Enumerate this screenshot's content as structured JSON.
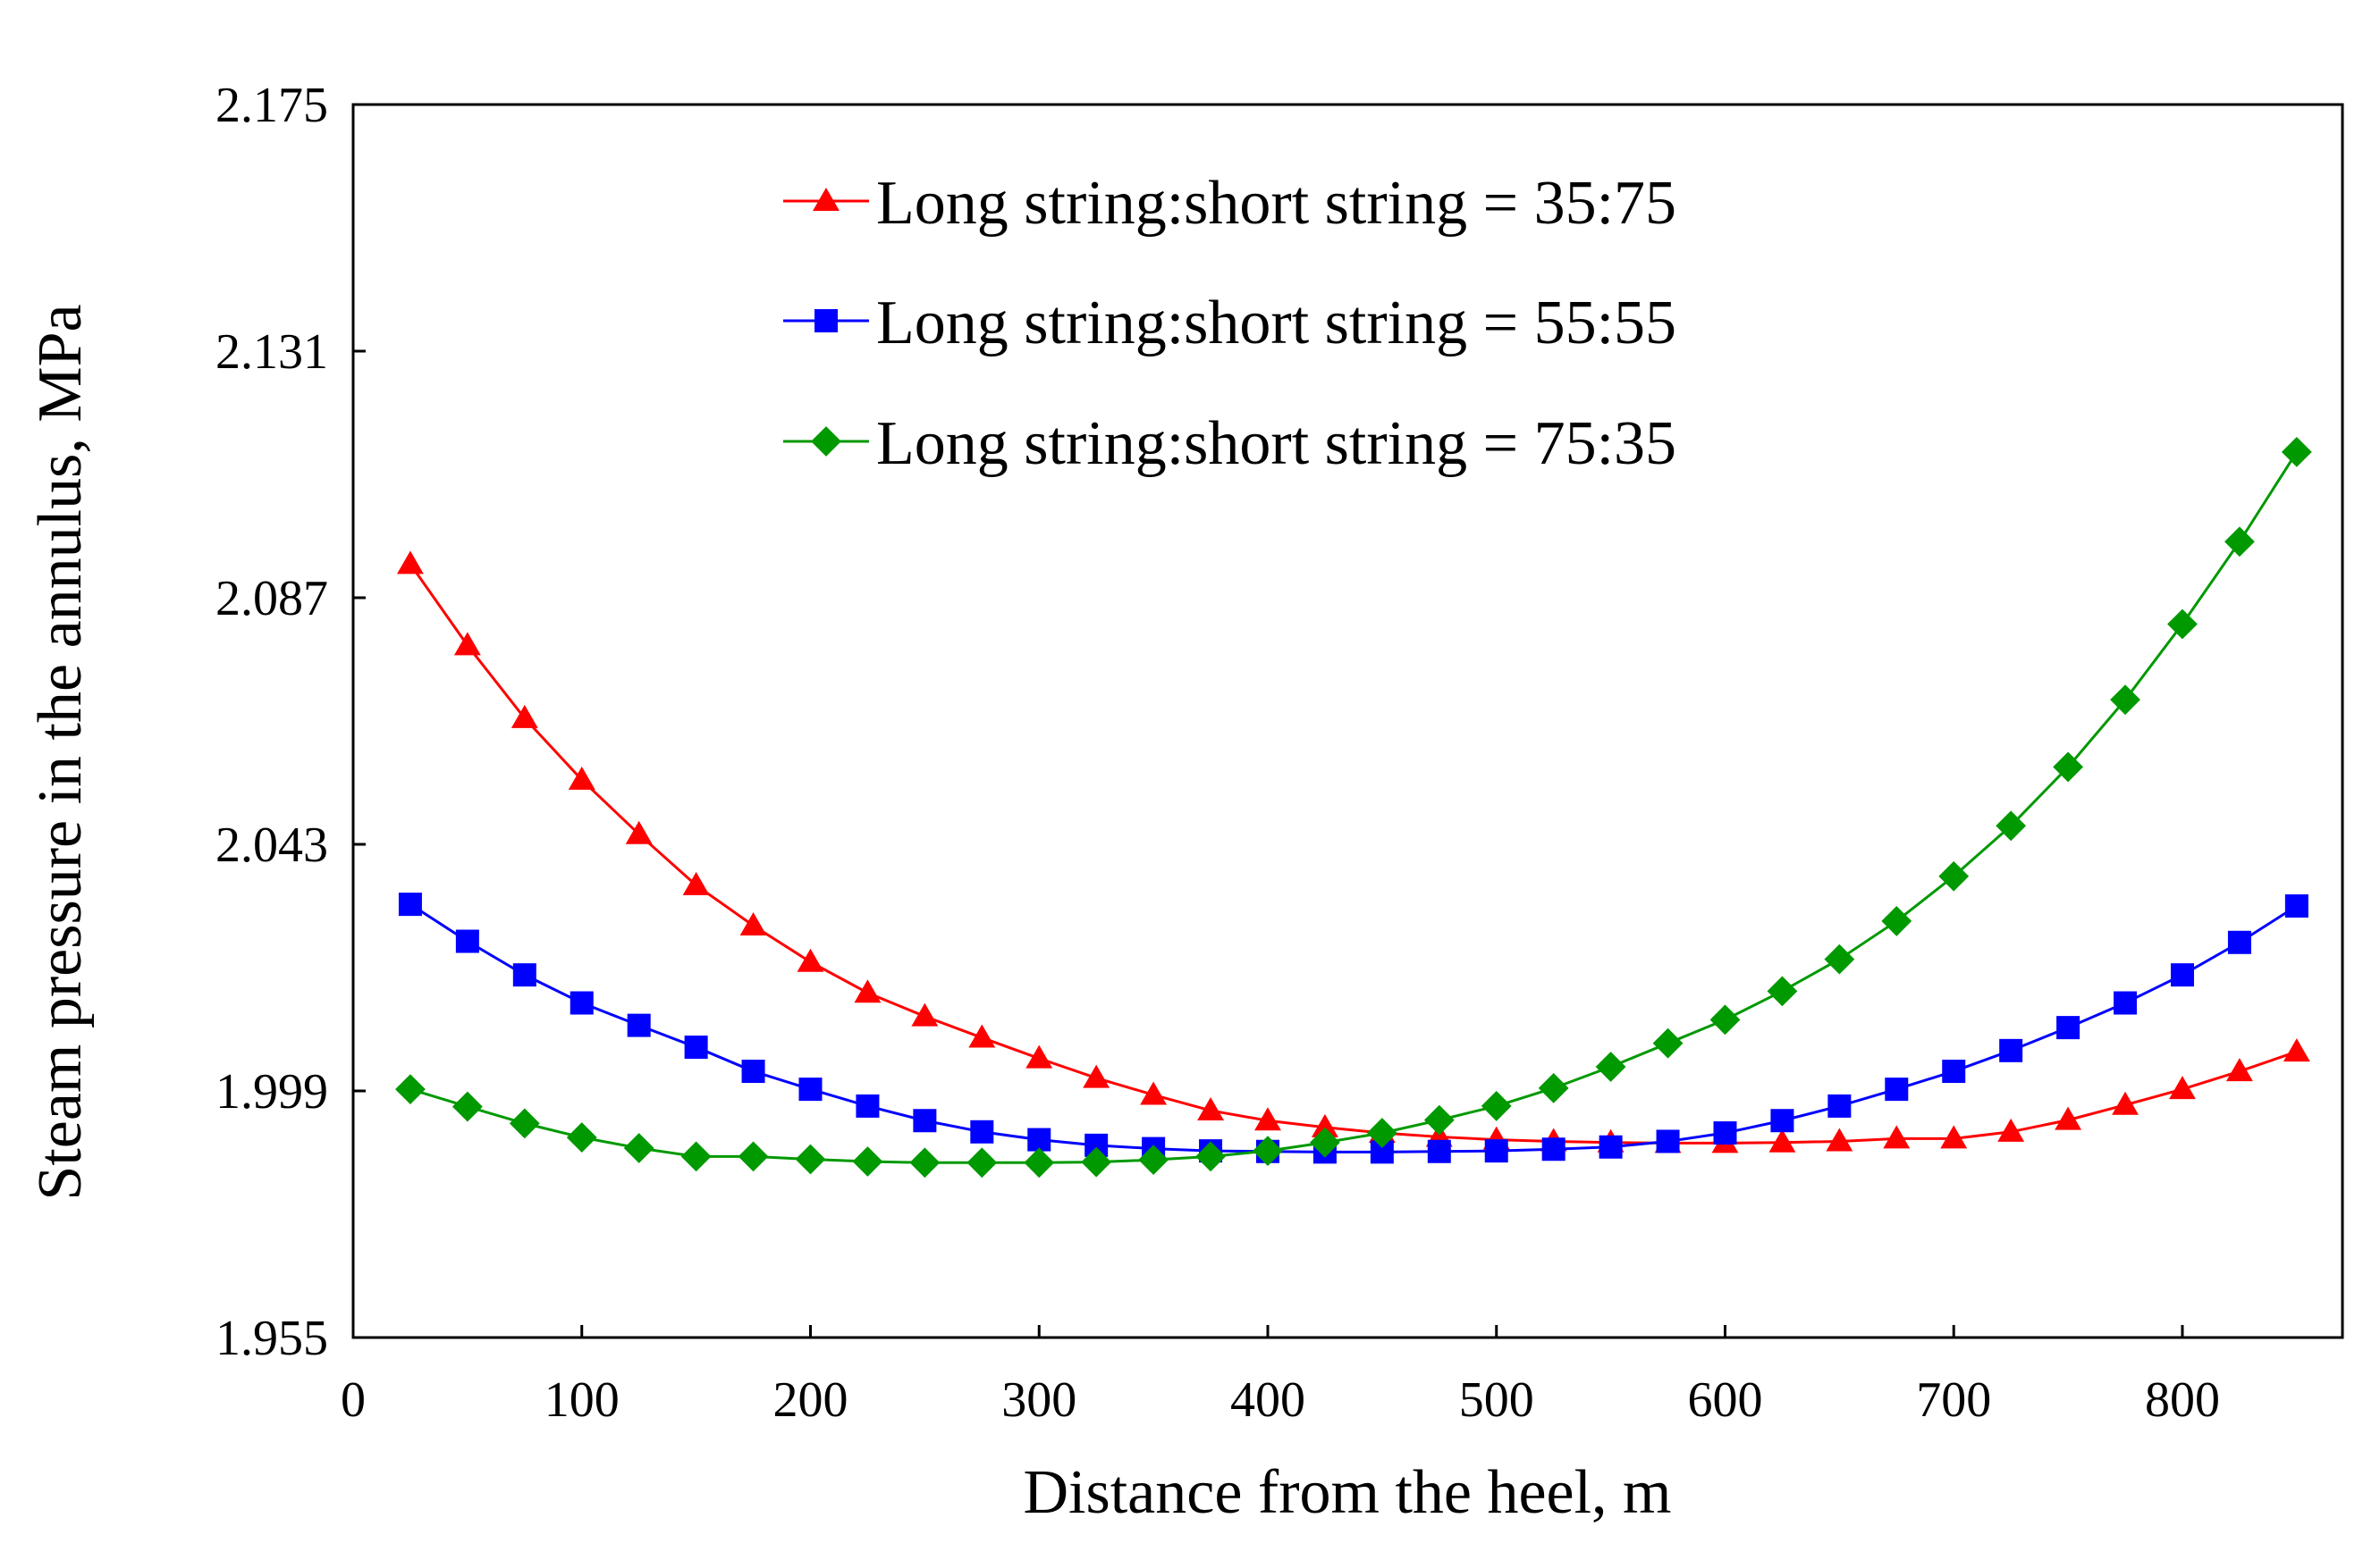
{
  "chart_data": {
    "type": "line",
    "title": "",
    "xlabel": "Distance from the heel, m",
    "ylabel": "Steam pressure in the annulus, MPa",
    "xlim": [
      0,
      870
    ],
    "ylim": [
      1.955,
      2.175
    ],
    "xticks": [
      0,
      100,
      200,
      300,
      400,
      500,
      600,
      700,
      800
    ],
    "yticks": [
      1.955,
      1.999,
      2.043,
      2.087,
      2.131,
      2.175
    ],
    "ytick_labels": [
      "1.955",
      "1.999",
      "2.043",
      "2.087",
      "2.131",
      "2.175"
    ],
    "grid": false,
    "legend_position": "top-center",
    "x": [
      25,
      50,
      75,
      100,
      125,
      150,
      175,
      200,
      225,
      250,
      275,
      300,
      325,
      350,
      375,
      400,
      425,
      450,
      475,
      500,
      525,
      550,
      575,
      600,
      625,
      650,
      675,
      700,
      725,
      750,
      775,
      800,
      825,
      850
    ],
    "series": [
      {
        "name": "Long string:short string = 35:75",
        "color": "#ff0000",
        "marker": "triangle",
        "values": [
          2.093,
          2.0785,
          2.0655,
          2.0545,
          2.0448,
          2.0357,
          2.0285,
          2.022,
          2.0165,
          2.0123,
          2.0085,
          2.0048,
          2.0013,
          1.9983,
          1.9955,
          1.9937,
          1.9925,
          1.9915,
          1.9908,
          1.9903,
          1.99,
          1.9898,
          1.9897,
          1.9897,
          1.9898,
          1.99,
          1.9905,
          1.9905,
          1.9917,
          1.9938,
          1.9965,
          1.9993,
          2.0025,
          2.006
        ]
      },
      {
        "name": "Long string:short string = 55:55",
        "color": "#0000ff",
        "marker": "square",
        "values": [
          2.0323,
          2.0257,
          2.0197,
          2.0147,
          2.0107,
          2.0068,
          2.0025,
          1.9993,
          1.9963,
          1.9937,
          1.9917,
          1.9903,
          1.9893,
          1.9887,
          1.9883,
          1.9882,
          1.9881,
          1.9881,
          1.9882,
          1.9883,
          1.9886,
          1.989,
          1.99,
          1.9915,
          1.9937,
          1.9963,
          1.9993,
          2.0025,
          2.0062,
          2.0103,
          2.0147,
          2.0197,
          2.0255,
          2.032
        ]
      },
      {
        "name": "Long string:short string = 75:35",
        "color": "#009900",
        "marker": "diamond",
        "values": [
          1.9993,
          1.9962,
          1.9932,
          1.9907,
          1.9888,
          1.9873,
          1.9873,
          1.9868,
          1.9864,
          1.9862,
          1.9862,
          1.9862,
          1.9863,
          1.9867,
          1.9873,
          1.9883,
          1.9898,
          1.9915,
          1.9938,
          1.9963,
          1.9995,
          2.0033,
          2.0075,
          2.0117,
          2.0168,
          2.0225,
          2.0293,
          2.0373,
          2.0463,
          2.0568,
          2.0688,
          2.0823,
          2.097,
          2.113
        ]
      }
    ]
  }
}
